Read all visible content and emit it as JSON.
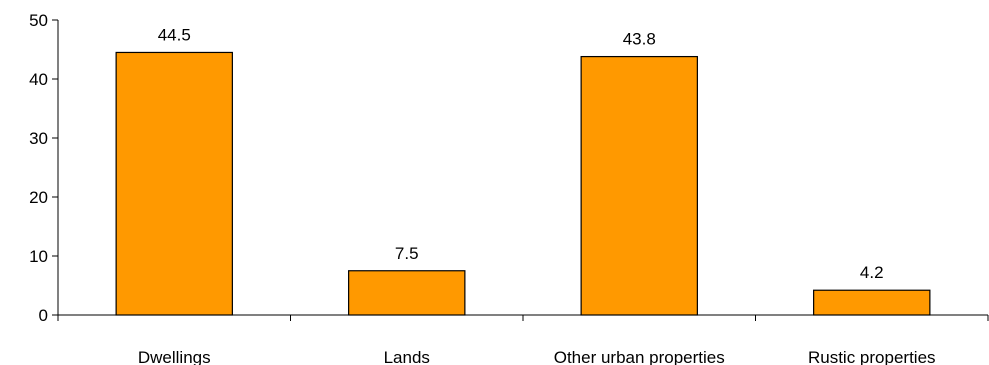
{
  "chart_data": {
    "type": "bar",
    "title": "",
    "xlabel": "",
    "ylabel": "",
    "categories": [
      "Dwellings",
      "Lands",
      "Other urban properties",
      "Rustic properties"
    ],
    "values": [
      44.5,
      7.5,
      43.8,
      4.2
    ],
    "data_labels": [
      "44.5",
      "7.5",
      "43.8",
      "4.2"
    ],
    "ylim": [
      0,
      50
    ],
    "yticks": [
      0,
      10,
      20,
      30,
      40,
      50
    ],
    "ytick_labels": [
      "0",
      "10",
      "20",
      "30",
      "40",
      "50"
    ],
    "grid": false,
    "legend": "none",
    "bar_color": "#FF9900",
    "bar_stroke": "#000000"
  }
}
